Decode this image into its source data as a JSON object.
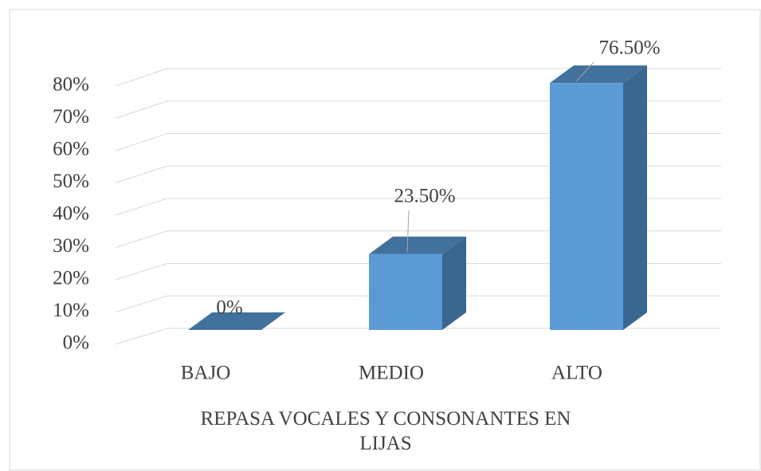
{
  "chart_data": {
    "type": "bar3d",
    "x_label": "REPASA VOCALES Y CONSONANTES EN LIJAS",
    "categories": [
      "BAJO",
      "MEDIO",
      "ALTO"
    ],
    "values": [
      0,
      23.5,
      76.5
    ],
    "value_labels": [
      "0%",
      "23.50%",
      "76.50%"
    ],
    "color": "#5b9bd5",
    "ylim": [
      0,
      80
    ],
    "yticks": [
      {
        "value": 0,
        "label": "0%"
      },
      {
        "value": 10,
        "label": "10%"
      },
      {
        "value": 20,
        "label": "20%"
      },
      {
        "value": 30,
        "label": "30%"
      },
      {
        "value": 40,
        "label": "40%"
      },
      {
        "value": 50,
        "label": "50%"
      },
      {
        "value": 60,
        "label": "60%"
      },
      {
        "value": 70,
        "label": "70%"
      },
      {
        "value": 80,
        "label": "80%"
      }
    ],
    "grid": true
  }
}
